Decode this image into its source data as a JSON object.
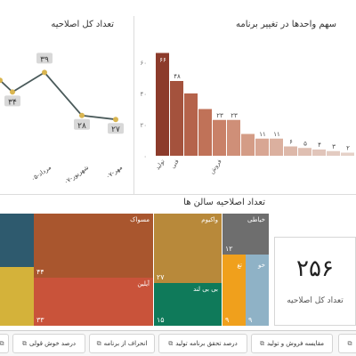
{
  "line_panel": {
    "title": "تعداد کل اصلاحیه",
    "points": [
      {
        "label": "",
        "value": 37,
        "value_label": ""
      },
      {
        "label": "",
        "value": 34,
        "value_label": "۳۴"
      },
      {
        "label": "مرداد-۰۵",
        "value": 39,
        "value_label": "۳۹"
      },
      {
        "label": "شهریور-۰۷",
        "value": 28,
        "value_label": "۲۸"
      },
      {
        "label": "مهر-۰۷",
        "value": 27,
        "value_label": "۲۷"
      }
    ]
  },
  "bar_panel": {
    "title": "سهم واحدها در تغییر برنامه",
    "y_ticks": [
      "۶۰",
      "۴۰",
      "۲۰",
      "۰"
    ],
    "bars": [
      {
        "label": "تولید",
        "value": 66,
        "value_label": "۶۶",
        "color": "#8c3b2b"
      },
      {
        "label": "فنی",
        "value": 48,
        "value_label": "۴۸",
        "color": "#a4523d"
      },
      {
        "label": "",
        "value": 40,
        "value_label": "",
        "color": "#b5634b"
      },
      {
        "label": "",
        "value": 30,
        "value_label": "",
        "color": "#c07258"
      },
      {
        "label": "فروش",
        "value": 23,
        "value_label": "۲۳",
        "color": "#c98168"
      },
      {
        "label": "",
        "value": 23,
        "value_label": "۲۳",
        "color": "#cf8f78"
      },
      {
        "label": "",
        "value": 14,
        "value_label": "",
        "color": "#d49c86"
      },
      {
        "label": "",
        "value": 11,
        "value_label": "۱۱",
        "color": "#d8a693"
      },
      {
        "label": "",
        "value": 11,
        "value_label": "۱۱",
        "color": "#dbb09f"
      },
      {
        "label": "",
        "value": 6,
        "value_label": "۶",
        "color": "#ddb8a9"
      },
      {
        "label": "",
        "value": 5,
        "value_label": "۵",
        "color": "#dfbfb2"
      },
      {
        "label": "",
        "value": 4,
        "value_label": "۴",
        "color": "#e1c5ba"
      },
      {
        "label": "",
        "value": 3,
        "value_label": "۳",
        "color": "#e3cbc1"
      },
      {
        "label": "",
        "value": 2,
        "value_label": "۲",
        "color": "#e5d1c8"
      }
    ]
  },
  "treemap": {
    "title": "تعداد اصلاحیه سالن ها",
    "cells": [
      {
        "name": "",
        "value": "",
        "color": "#2e5a6e"
      },
      {
        "name": "",
        "value": "",
        "color": "#d4b23a"
      },
      {
        "name": "مسواک",
        "value": "۴۴",
        "color": "#a9562e"
      },
      {
        "name": "آیلین",
        "value": "۳۳",
        "color": "#c9533a"
      },
      {
        "name": "واکیوم",
        "value": "۲۷",
        "color": "#b8893a"
      },
      {
        "name": "بی بی لند",
        "value": "۱۵",
        "color": "#0f7a5a"
      },
      {
        "name": "خیاطی",
        "value": "۱۲",
        "color": "#6e6e6e"
      },
      {
        "name": "تغ",
        "value": "۹",
        "color": "#f0a01c"
      },
      {
        "name": "خو",
        "value": "۹",
        "color": "#8fb2c6"
      }
    ]
  },
  "kpi": {
    "value": "۲۵۶",
    "label": "تعداد کل اصلاحیه"
  },
  "tabs": [
    {
      "label": "مقایسه فروش و تولید",
      "icon": "report-icon"
    },
    {
      "label": "درصد تحقق برنامه تولید",
      "icon": "report-icon"
    },
    {
      "label": "انحراف از برنامه",
      "icon": "report-icon"
    },
    {
      "label": "درصد خوش قولی",
      "icon": "report-icon"
    }
  ]
}
